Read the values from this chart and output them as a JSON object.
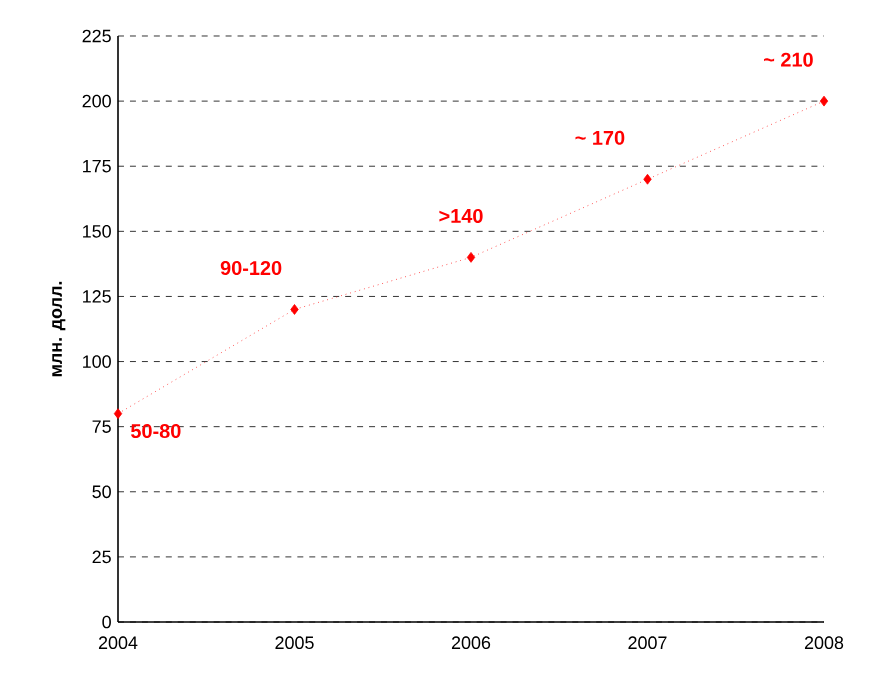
{
  "chart_data": {
    "type": "line",
    "ylabel": "млн. долл.",
    "x": [
      2004,
      2005,
      2006,
      2007,
      2008
    ],
    "series": [
      {
        "color": "#ff0000",
        "values": [
          80,
          120,
          140,
          170,
          200
        ]
      }
    ],
    "xlim": [
      2004,
      2008
    ],
    "xticks": [
      2004,
      2005,
      2006,
      2007,
      2008
    ],
    "ylim": [
      0,
      225
    ],
    "yticks": [
      0,
      25,
      50,
      75,
      100,
      125,
      150,
      175,
      200,
      225
    ],
    "grid": "y",
    "marker": "diamond",
    "line_style": "dotted",
    "annotations": [
      {
        "text": "50-80",
        "x": 2004,
        "y": 80
      },
      {
        "text": "90-120",
        "x": 2005,
        "y": 120
      },
      {
        "text": ">140",
        "x": 2006,
        "y": 140
      },
      {
        "text": "~ 170",
        "x": 2007,
        "y": 170
      },
      {
        "text": "~ 210",
        "x": 2008,
        "y": 200
      }
    ]
  }
}
